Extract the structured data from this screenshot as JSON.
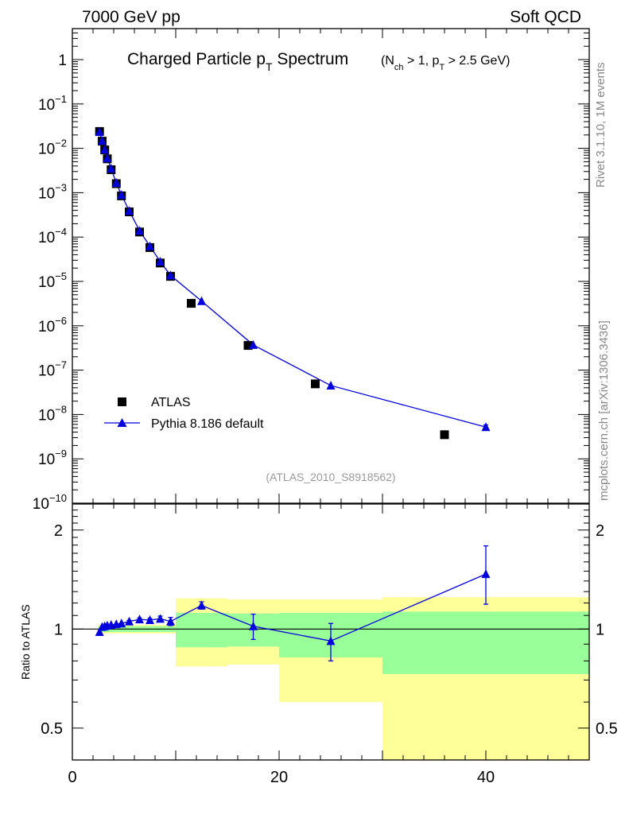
{
  "header": {
    "left": "7000 GeV pp",
    "right": "Soft QCD"
  },
  "side_labels": {
    "rivet": "Rivet 3.1.10,  1M events",
    "source": "mcplots.cern.ch [arXiv:1306.3436]"
  },
  "chart_data": [
    {
      "type": "scatter",
      "scale": "log",
      "title_main": "Charged Particle p",
      "title_main_sub": "T",
      "title_main_tail": " Spectrum",
      "title_cut_a": "(N",
      "title_cut_a_sub": "ch",
      "title_cut_b": " > 1, p",
      "title_cut_b_sub": "T",
      "title_cut_c": " > 2.5 GeV)",
      "watermark": "(ATLAS_2010_S8918562)",
      "xlim": [
        0,
        50
      ],
      "ylim": [
        1e-10,
        5
      ],
      "y_ticks": [
        {
          "v": 1,
          "base": "1",
          "exp": ""
        },
        {
          "v": 0.1,
          "base": "10",
          "exp": "−1"
        },
        {
          "v": 0.01,
          "base": "10",
          "exp": "−2"
        },
        {
          "v": 0.001,
          "base": "10",
          "exp": "−3"
        },
        {
          "v": 0.0001,
          "base": "10",
          "exp": "−4"
        },
        {
          "v": 1e-05,
          "base": "10",
          "exp": "−5"
        },
        {
          "v": 1e-06,
          "base": "10",
          "exp": "−6"
        },
        {
          "v": 1e-07,
          "base": "10",
          "exp": "−7"
        },
        {
          "v": 1e-08,
          "base": "10",
          "exp": "−8"
        },
        {
          "v": 1e-09,
          "base": "10",
          "exp": "−9"
        },
        {
          "v": 1e-10,
          "base": "10",
          "exp": "−10"
        }
      ],
      "legend": [
        "ATLAS",
        "Pythia 8.186 default"
      ],
      "series": [
        {
          "name": "ATLAS",
          "marker": "square",
          "color": "#000000",
          "x": [
            2.63,
            2.88,
            3.13,
            3.38,
            3.75,
            4.25,
            4.75,
            5.5,
            6.5,
            7.5,
            8.5,
            9.5,
            11.5,
            17.0,
            23.5,
            36.0
          ],
          "y": [
            0.024,
            0.0145,
            0.0092,
            0.0058,
            0.0033,
            0.0016,
            0.00085,
            0.00037,
            0.00013,
            5.8e-05,
            2.6e-05,
            1.3e-05,
            3.2e-06,
            3.6e-07,
            4.9e-08,
            3.5e-09
          ]
        },
        {
          "name": "Pythia 8.186 default",
          "marker": "triangle",
          "color": "#0000dd",
          "x": [
            2.63,
            2.88,
            3.13,
            3.38,
            3.75,
            4.25,
            4.75,
            5.5,
            6.5,
            7.5,
            8.5,
            9.5,
            12.5,
            17.5,
            25.0,
            40.0
          ],
          "y": [
            0.0235,
            0.0147,
            0.0094,
            0.006,
            0.0035,
            0.00167,
            0.00089,
            0.00039,
            0.000139,
            6.2e-05,
            2.8e-05,
            1.37e-05,
            3.6e-06,
            3.7e-07,
            4.5e-08,
            5.2e-09
          ],
          "yerr_rel": [
            0,
            0,
            0,
            0,
            0,
            0,
            0,
            0,
            0,
            0,
            0,
            0,
            0,
            0,
            0,
            0.12
          ]
        }
      ]
    },
    {
      "type": "scatter",
      "scale": "log",
      "ylabel": "Ratio to ATLAS",
      "xlabel": "",
      "xlim": [
        0,
        50
      ],
      "ylim": [
        0.4,
        2.4
      ],
      "x_ticks": [
        0,
        20,
        40
      ],
      "y_ticks": [
        {
          "v": 2,
          "label": "2"
        },
        {
          "v": 1,
          "label": "1"
        },
        {
          "v": 0.5,
          "label": "0.5"
        }
      ],
      "bands": [
        {
          "x": [
            2.5,
            10
          ],
          "yellow": [
            0.97,
            1.03
          ],
          "green": [
            0.98,
            1.02
          ]
        },
        {
          "x": [
            10,
            15
          ],
          "yellow": [
            0.77,
            1.24
          ],
          "green": [
            0.88,
            1.12
          ]
        },
        {
          "x": [
            15,
            20
          ],
          "yellow": [
            0.78,
            1.23
          ],
          "green": [
            0.885,
            1.115
          ]
        },
        {
          "x": [
            20,
            30
          ],
          "yellow": [
            0.6,
            1.23
          ],
          "green": [
            0.82,
            1.12
          ]
        },
        {
          "x": [
            30,
            50
          ],
          "yellow": [
            0.4,
            1.25
          ],
          "green": [
            0.73,
            1.13
          ]
        }
      ],
      "series": [
        {
          "name": "Pythia 8.186 default",
          "color": "#0000dd",
          "x": [
            2.63,
            2.88,
            3.13,
            3.38,
            3.75,
            4.25,
            4.75,
            5.5,
            6.5,
            7.5,
            8.5,
            9.5,
            12.5,
            17.5,
            25.0,
            40.0
          ],
          "y": [
            0.98,
            1.015,
            1.02,
            1.025,
            1.03,
            1.035,
            1.04,
            1.055,
            1.07,
            1.065,
            1.075,
            1.055,
            1.18,
            1.02,
            0.92,
            1.47
          ],
          "yerr_lo": [
            0.005,
            0.005,
            0.005,
            0.005,
            0.005,
            0.005,
            0.005,
            0.008,
            0.01,
            0.012,
            0.02,
            0.03,
            0.03,
            0.09,
            0.12,
            0.28
          ],
          "yerr_hi": [
            0.005,
            0.005,
            0.005,
            0.005,
            0.005,
            0.005,
            0.005,
            0.008,
            0.01,
            0.012,
            0.02,
            0.03,
            0.03,
            0.09,
            0.12,
            0.32
          ]
        }
      ]
    }
  ]
}
